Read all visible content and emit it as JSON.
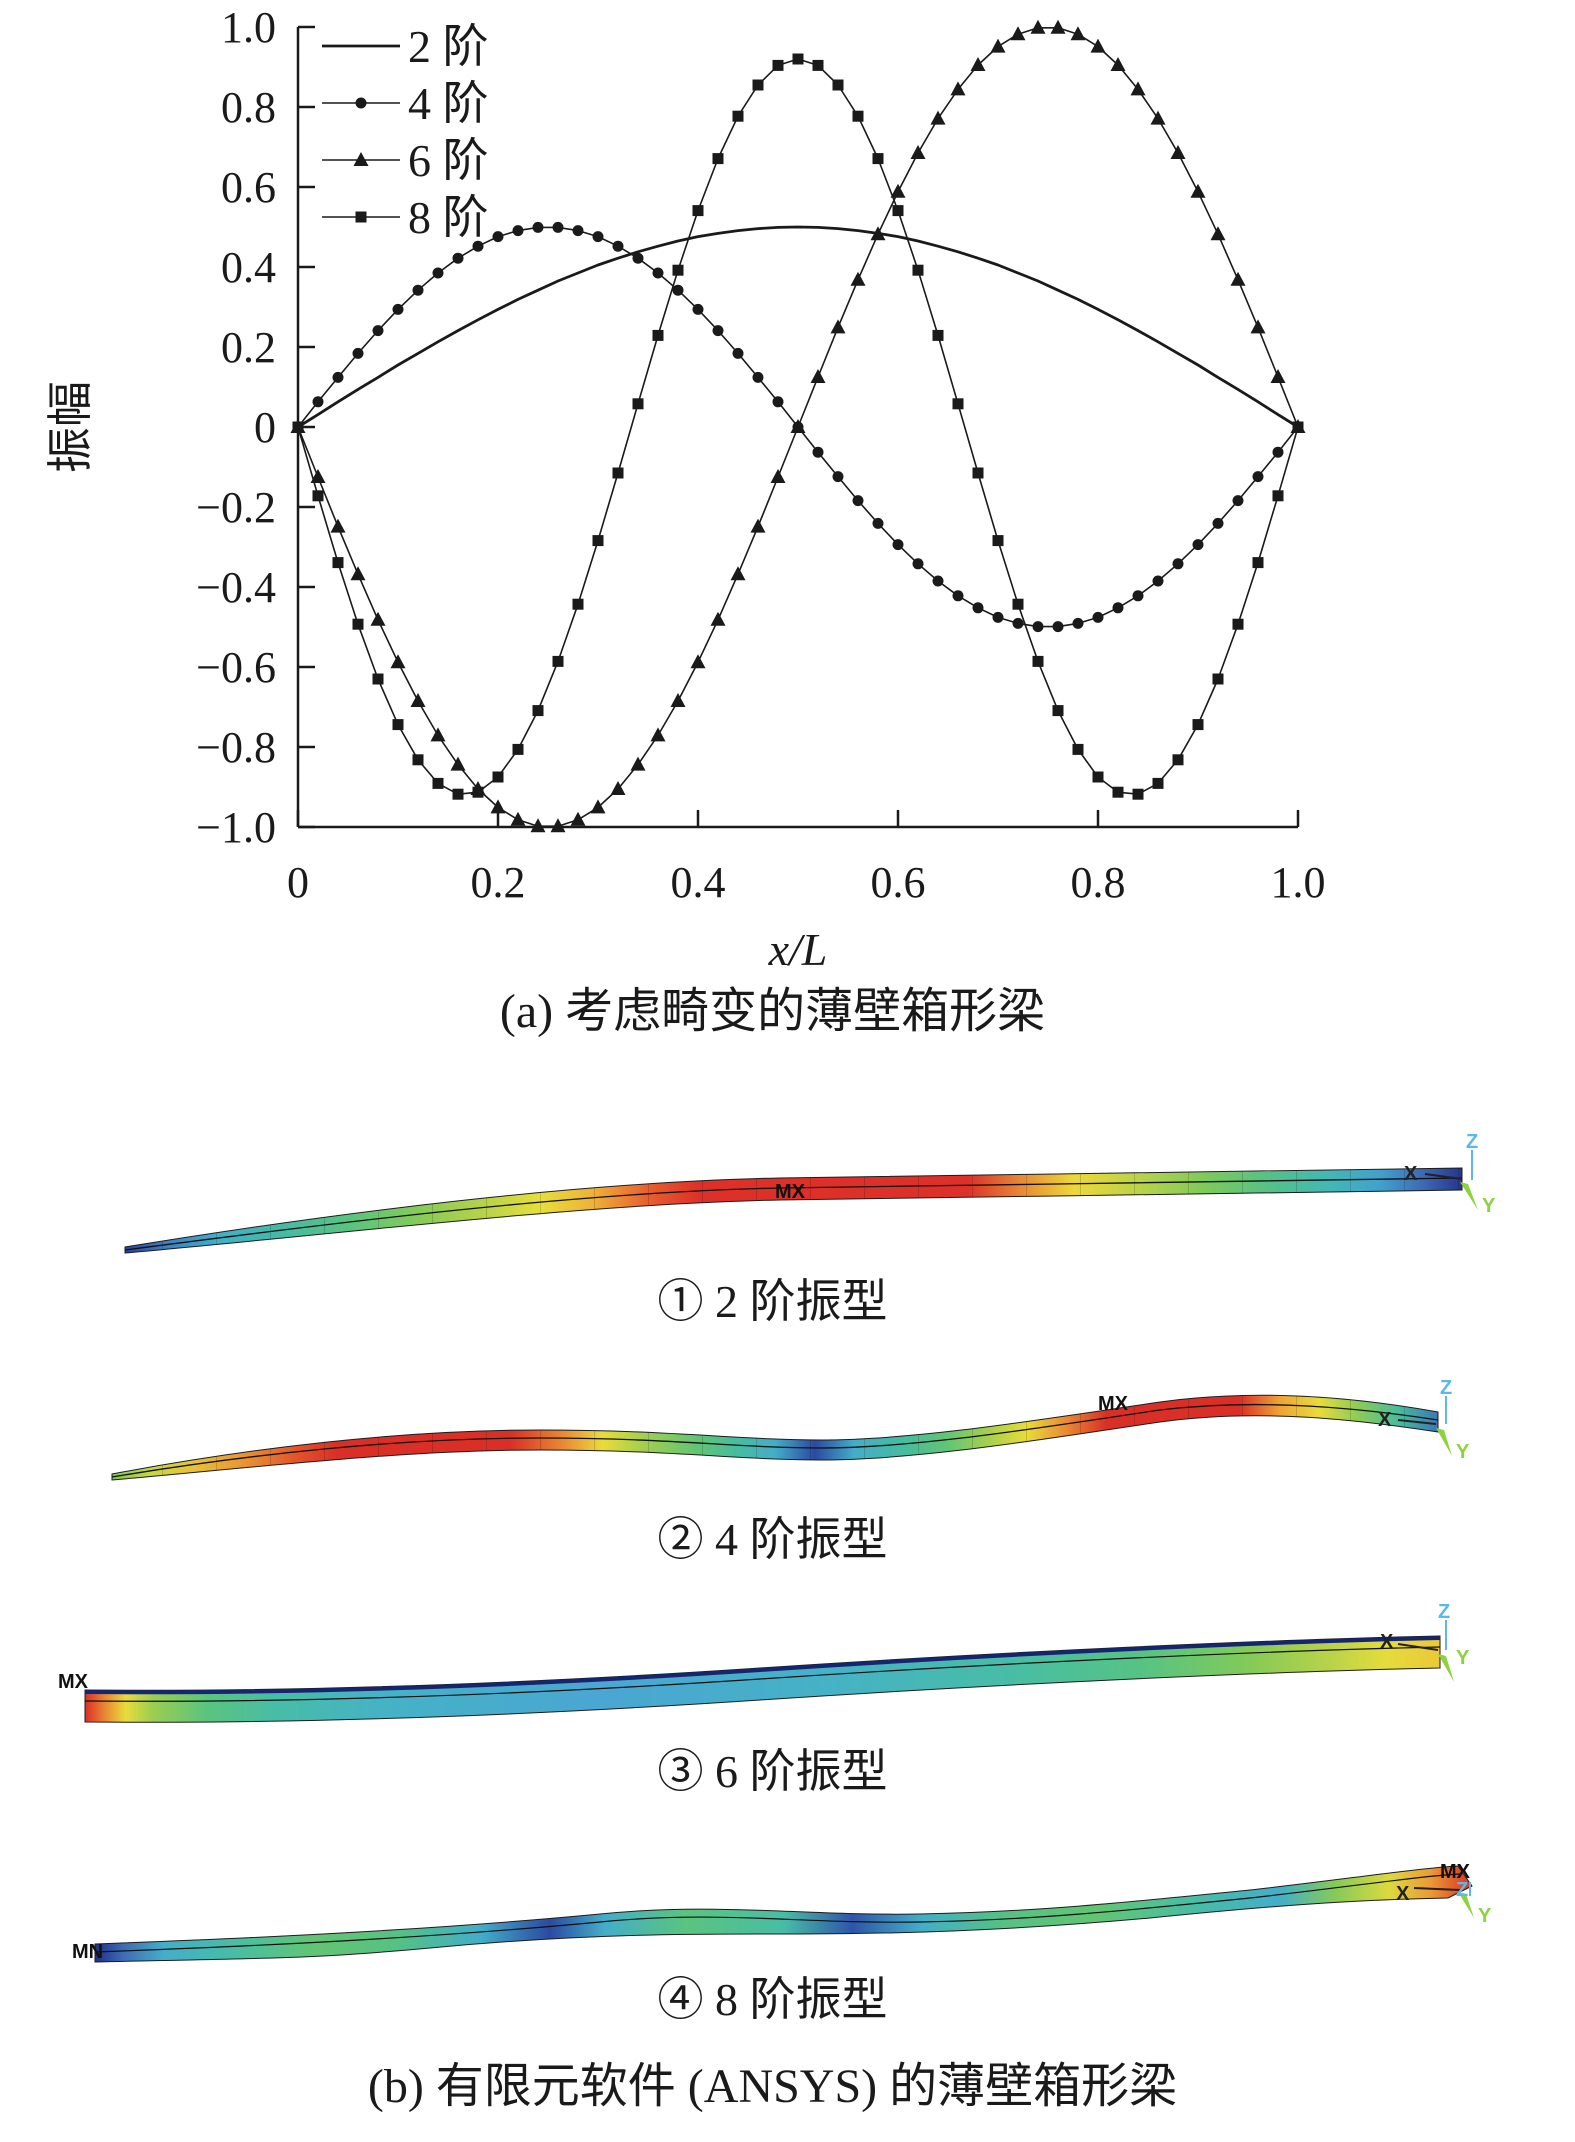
{
  "figure": {
    "caption_a": "(a) 考虑畸变的薄壁箱形梁",
    "caption_b": "(b) 有限元软件 (ANSYS) 的薄壁箱形梁"
  },
  "chart_data": {
    "type": "line",
    "title": "",
    "xlabel": "x/L",
    "ylabel": "振幅",
    "xlim": [
      0,
      1
    ],
    "ylim": [
      -1,
      1
    ],
    "grid": false,
    "legend_position": "top-left-inside",
    "xticks": [
      {
        "v": 0,
        "label": "0"
      },
      {
        "v": 0.2,
        "label": "0.2"
      },
      {
        "v": 0.4,
        "label": "0.4"
      },
      {
        "v": 0.6,
        "label": "0.6"
      },
      {
        "v": 0.8,
        "label": "0.8"
      },
      {
        "v": 1.0,
        "label": "1.0"
      }
    ],
    "yticks": [
      {
        "v": 1.0,
        "label": "1.0"
      },
      {
        "v": 0.8,
        "label": "0.8"
      },
      {
        "v": 0.6,
        "label": "0.6"
      },
      {
        "v": 0.4,
        "label": "0.4"
      },
      {
        "v": 0.2,
        "label": "0.2"
      },
      {
        "v": 0,
        "label": "0"
      },
      {
        "v": -0.2,
        "label": "−0.2"
      },
      {
        "v": -0.4,
        "label": "−0.4"
      },
      {
        "v": -0.6,
        "label": "−0.6"
      },
      {
        "v": -0.8,
        "label": "−0.8"
      },
      {
        "v": -1.0,
        "label": "−1.0"
      }
    ],
    "x": [
      0,
      0.02,
      0.04,
      0.06,
      0.08,
      0.1,
      0.12,
      0.14,
      0.16,
      0.18,
      0.2,
      0.22,
      0.24,
      0.26,
      0.28,
      0.3,
      0.32,
      0.34,
      0.36,
      0.38,
      0.4,
      0.42,
      0.44,
      0.46,
      0.48,
      0.5,
      0.52,
      0.54,
      0.56,
      0.58,
      0.6,
      0.62,
      0.64,
      0.66,
      0.68,
      0.7,
      0.72,
      0.74,
      0.76,
      0.78,
      0.8,
      0.82,
      0.84,
      0.86,
      0.88,
      0.9,
      0.92,
      0.94,
      0.96,
      0.98,
      1.0
    ],
    "series": [
      {
        "name": "2 阶",
        "marker": "none",
        "values": [
          0,
          0.031,
          0.063,
          0.094,
          0.124,
          0.155,
          0.184,
          0.213,
          0.241,
          0.268,
          0.294,
          0.319,
          0.342,
          0.365,
          0.385,
          0.405,
          0.422,
          0.438,
          0.452,
          0.465,
          0.476,
          0.484,
          0.491,
          0.496,
          0.499,
          0.5,
          0.499,
          0.496,
          0.491,
          0.484,
          0.476,
          0.465,
          0.452,
          0.438,
          0.422,
          0.405,
          0.385,
          0.365,
          0.342,
          0.319,
          0.294,
          0.268,
          0.241,
          0.213,
          0.184,
          0.155,
          0.124,
          0.094,
          0.063,
          0.031,
          0
        ]
      },
      {
        "name": "4 阶",
        "marker": "circle",
        "values": [
          0,
          0.063,
          0.124,
          0.184,
          0.241,
          0.294,
          0.342,
          0.385,
          0.422,
          0.452,
          0.476,
          0.491,
          0.499,
          0.499,
          0.491,
          0.476,
          0.452,
          0.422,
          0.385,
          0.342,
          0.294,
          0.241,
          0.184,
          0.124,
          0.063,
          0,
          -0.063,
          -0.124,
          -0.184,
          -0.241,
          -0.294,
          -0.342,
          -0.385,
          -0.422,
          -0.452,
          -0.476,
          -0.491,
          -0.499,
          -0.499,
          -0.491,
          -0.476,
          -0.452,
          -0.422,
          -0.385,
          -0.342,
          -0.294,
          -0.241,
          -0.184,
          -0.124,
          -0.063,
          0
        ]
      },
      {
        "name": "6 阶",
        "marker": "triangle",
        "values": [
          0,
          -0.125,
          -0.249,
          -0.368,
          -0.482,
          -0.588,
          -0.685,
          -0.771,
          -0.844,
          -0.905,
          -0.951,
          -0.982,
          -0.998,
          -0.998,
          -0.982,
          -0.951,
          -0.905,
          -0.844,
          -0.771,
          -0.685,
          -0.588,
          -0.482,
          -0.368,
          -0.249,
          -0.125,
          0,
          0.125,
          0.249,
          0.368,
          0.482,
          0.588,
          0.685,
          0.771,
          0.844,
          0.905,
          0.951,
          0.982,
          0.998,
          0.998,
          0.982,
          0.951,
          0.905,
          0.844,
          0.771,
          0.685,
          0.588,
          0.482,
          0.368,
          0.249,
          0.125,
          0
        ]
      },
      {
        "name": "8 阶",
        "marker": "square",
        "values": [
          0,
          -0.172,
          -0.339,
          -0.493,
          -0.63,
          -0.744,
          -0.832,
          -0.891,
          -0.918,
          -0.913,
          -0.875,
          -0.806,
          -0.709,
          -0.586,
          -0.443,
          -0.284,
          -0.115,
          0.058,
          0.229,
          0.392,
          0.541,
          0.671,
          0.777,
          0.855,
          0.904,
          0.92,
          0.904,
          0.855,
          0.777,
          0.671,
          0.541,
          0.392,
          0.229,
          0.058,
          -0.115,
          -0.284,
          -0.443,
          -0.586,
          -0.709,
          -0.806,
          -0.875,
          -0.913,
          -0.918,
          -0.891,
          -0.832,
          -0.744,
          -0.63,
          -0.493,
          -0.339,
          -0.172,
          0
        ]
      }
    ]
  },
  "colors": {
    "curve": "#1a1a1a",
    "axis": "#1a1a1a",
    "triad_z": "#5bb8e8",
    "triad_y": "#8ed23e",
    "triad_x": "#222222",
    "fem_label": "#111111"
  },
  "beams": [
    {
      "caption": "① 2 阶振型",
      "mx": "MX",
      "tz": "Z",
      "tx": "X",
      "ty": "Y",
      "gradient": [
        {
          "o": 0,
          "c": "#2b3f9e"
        },
        {
          "o": 0.03,
          "c": "#3e7fc1"
        },
        {
          "o": 0.07,
          "c": "#41b0c8"
        },
        {
          "o": 0.12,
          "c": "#45bba3"
        },
        {
          "o": 0.17,
          "c": "#5ac47e"
        },
        {
          "o": 0.22,
          "c": "#86cb58"
        },
        {
          "o": 0.27,
          "c": "#b9d348"
        },
        {
          "o": 0.31,
          "c": "#e6df3c"
        },
        {
          "o": 0.35,
          "c": "#eeb238"
        },
        {
          "o": 0.39,
          "c": "#e96030"
        },
        {
          "o": 0.43,
          "c": "#dc3028"
        },
        {
          "o": 0.63,
          "c": "#dc3028"
        },
        {
          "o": 0.67,
          "c": "#ea8834"
        },
        {
          "o": 0.71,
          "c": "#ecd83a"
        },
        {
          "o": 0.76,
          "c": "#b9d348"
        },
        {
          "o": 0.81,
          "c": "#7cc95c"
        },
        {
          "o": 0.86,
          "c": "#52c08c"
        },
        {
          "o": 0.9,
          "c": "#43b8b4"
        },
        {
          "o": 0.94,
          "c": "#41a0cc"
        },
        {
          "o": 0.97,
          "c": "#3e6bb4"
        },
        {
          "o": 1,
          "c": "#26348e"
        }
      ]
    },
    {
      "caption": "② 4 阶振型",
      "mx": "MX",
      "tz": "Z",
      "tx": "X",
      "ty": "Y",
      "gradient": [
        {
          "o": 0,
          "c": "#7cc74e"
        },
        {
          "o": 0.03,
          "c": "#c8d844"
        },
        {
          "o": 0.06,
          "c": "#e8c23a"
        },
        {
          "o": 0.1,
          "c": "#e89434"
        },
        {
          "o": 0.14,
          "c": "#e2522c"
        },
        {
          "o": 0.17,
          "c": "#d92f26"
        },
        {
          "o": 0.3,
          "c": "#d92f26"
        },
        {
          "o": 0.34,
          "c": "#ea8834"
        },
        {
          "o": 0.37,
          "c": "#e8dc3a"
        },
        {
          "o": 0.4,
          "c": "#a5cf4e"
        },
        {
          "o": 0.44,
          "c": "#62c574"
        },
        {
          "o": 0.47,
          "c": "#47bd9c"
        },
        {
          "o": 0.5,
          "c": "#43aec8"
        },
        {
          "o": 0.53,
          "c": "#2b4aa2"
        },
        {
          "o": 0.56,
          "c": "#43aec8"
        },
        {
          "o": 0.6,
          "c": "#47bd9c"
        },
        {
          "o": 0.63,
          "c": "#62c574"
        },
        {
          "o": 0.66,
          "c": "#a5cf4e"
        },
        {
          "o": 0.69,
          "c": "#e8dc3a"
        },
        {
          "o": 0.72,
          "c": "#ea8834"
        },
        {
          "o": 0.75,
          "c": "#d92f26"
        },
        {
          "o": 0.85,
          "c": "#d92f26"
        },
        {
          "o": 0.88,
          "c": "#eda236"
        },
        {
          "o": 0.91,
          "c": "#e8dc3a"
        },
        {
          "o": 0.94,
          "c": "#8ccb56"
        },
        {
          "o": 0.97,
          "c": "#47bd9c"
        },
        {
          "o": 1,
          "c": "#3a78b8"
        }
      ]
    },
    {
      "caption": "③ 6 阶振型",
      "mx": "MX",
      "tz": "Z",
      "tx": "X",
      "ty": "Y",
      "gradient": [
        {
          "o": 0,
          "c": "#d92f26"
        },
        {
          "o": 0.015,
          "c": "#ea8834"
        },
        {
          "o": 0.03,
          "c": "#e8dc3a"
        },
        {
          "o": 0.05,
          "c": "#9ccd50"
        },
        {
          "o": 0.09,
          "c": "#5ac47e"
        },
        {
          "o": 0.14,
          "c": "#48bda6"
        },
        {
          "o": 0.22,
          "c": "#45b2c6"
        },
        {
          "o": 0.38,
          "c": "#4aa6d2"
        },
        {
          "o": 0.55,
          "c": "#45b2c6"
        },
        {
          "o": 0.68,
          "c": "#48bda6"
        },
        {
          "o": 0.78,
          "c": "#56c384"
        },
        {
          "o": 0.86,
          "c": "#84ca58"
        },
        {
          "o": 0.92,
          "c": "#bad348"
        },
        {
          "o": 0.96,
          "c": "#e4dc3c"
        },
        {
          "o": 1,
          "c": "#ecc838"
        }
      ]
    },
    {
      "caption": "④ 8 阶振型",
      "mn": "MN",
      "mx": "MX",
      "tz": "Z",
      "tx": "X",
      "ty": "Y",
      "gradient": [
        {
          "o": 0,
          "c": "#1f2f88"
        },
        {
          "o": 0.02,
          "c": "#3e6bb4"
        },
        {
          "o": 0.05,
          "c": "#43aec8"
        },
        {
          "o": 0.1,
          "c": "#48bda6"
        },
        {
          "o": 0.16,
          "c": "#62c574"
        },
        {
          "o": 0.22,
          "c": "#55c184"
        },
        {
          "o": 0.28,
          "c": "#43aec8"
        },
        {
          "o": 0.33,
          "c": "#2b4aa2"
        },
        {
          "o": 0.37,
          "c": "#43aec8"
        },
        {
          "o": 0.43,
          "c": "#5ac47e"
        },
        {
          "o": 0.5,
          "c": "#48bda6"
        },
        {
          "o": 0.55,
          "c": "#2f55a8"
        },
        {
          "o": 0.6,
          "c": "#43aec8"
        },
        {
          "o": 0.66,
          "c": "#55c184"
        },
        {
          "o": 0.73,
          "c": "#62c574"
        },
        {
          "o": 0.8,
          "c": "#48bda6"
        },
        {
          "o": 0.86,
          "c": "#43aec8"
        },
        {
          "o": 0.9,
          "c": "#84ca58"
        },
        {
          "o": 0.94,
          "c": "#dcda3e"
        },
        {
          "o": 0.97,
          "c": "#ec9a34"
        },
        {
          "o": 1,
          "c": "#d92f26"
        }
      ]
    }
  ]
}
